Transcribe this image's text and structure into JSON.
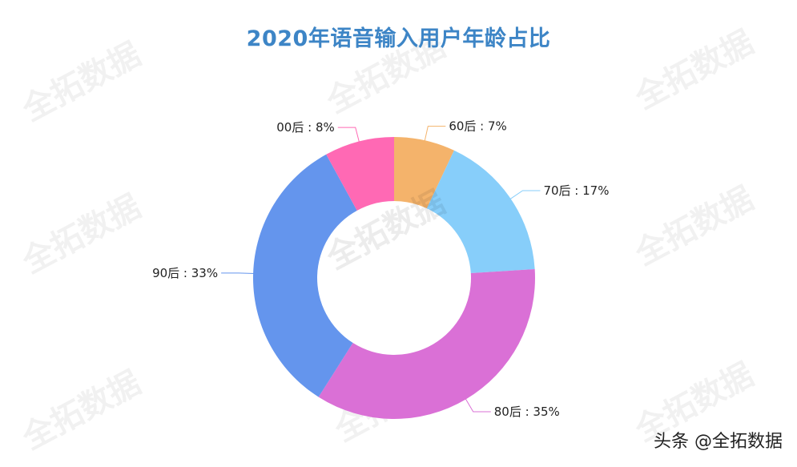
{
  "title": "2020年语音输入用户年龄占比",
  "watermark": "全拓数据",
  "credit": "头条 @全拓数据",
  "chart_data": {
    "type": "pie",
    "variant": "donut",
    "title": "2020年语音输入用户年龄占比",
    "start_angle": "top, clockwise",
    "categories": [
      "60后",
      "70后",
      "80后",
      "90后",
      "00后"
    ],
    "values": [
      7,
      17,
      35,
      33,
      8
    ],
    "unit": "%",
    "colors": [
      "#F4B36B",
      "#87CEFA",
      "#DA70D6",
      "#6495ED",
      "#FF69B4"
    ],
    "labels": [
      "60后 : 7%",
      "70后 : 17%",
      "80后 : 35%",
      "90后 : 33%",
      "00后 : 8%"
    ],
    "legend": "none (outside labels with leader lines)"
  }
}
